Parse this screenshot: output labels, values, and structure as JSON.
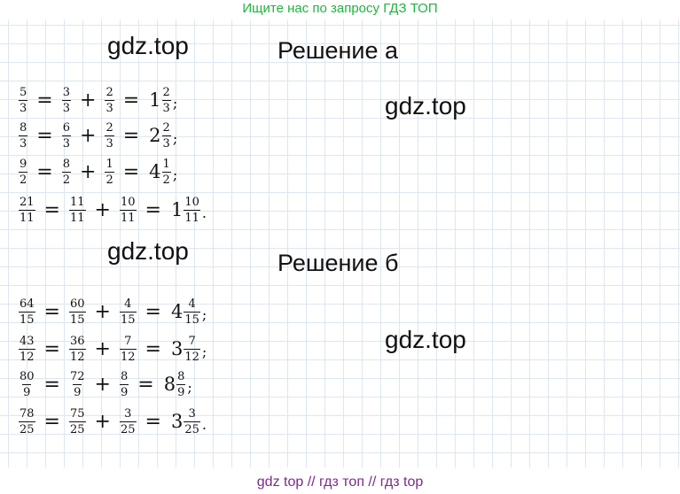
{
  "banner": "Ищите нас по запросу ГДЗ ТОП",
  "watermark": "gdz.top",
  "section_a": {
    "title": "Решение а",
    "equations": [
      {
        "lhs": [
          "5",
          "3"
        ],
        "t1": [
          "3",
          "3"
        ],
        "t2": [
          "2",
          "3"
        ],
        "whole": "1",
        "rf": [
          "2",
          "3"
        ],
        "end": ";"
      },
      {
        "lhs": [
          "8",
          "3"
        ],
        "t1": [
          "6",
          "3"
        ],
        "t2": [
          "2",
          "3"
        ],
        "whole": "2",
        "rf": [
          "2",
          "3"
        ],
        "end": ";"
      },
      {
        "lhs": [
          "9",
          "2"
        ],
        "t1": [
          "8",
          "2"
        ],
        "t2": [
          "1",
          "2"
        ],
        "whole": "4",
        "rf": [
          "1",
          "2"
        ],
        "end": ";"
      },
      {
        "lhs": [
          "21",
          "11"
        ],
        "t1": [
          "11",
          "11"
        ],
        "t2": [
          "10",
          "11"
        ],
        "whole": "1",
        "rf": [
          "10",
          "11"
        ],
        "end": "."
      }
    ]
  },
  "section_b": {
    "title": "Решение б",
    "equations": [
      {
        "lhs": [
          "64",
          "15"
        ],
        "t1": [
          "60",
          "15"
        ],
        "t2": [
          "4",
          "15"
        ],
        "whole": "4",
        "rf": [
          "4",
          "15"
        ],
        "end": ";"
      },
      {
        "lhs": [
          "43",
          "12"
        ],
        "t1": [
          "36",
          "12"
        ],
        "t2": [
          "7",
          "12"
        ],
        "whole": "3",
        "rf": [
          "7",
          "12"
        ],
        "end": ";"
      },
      {
        "lhs": [
          "80",
          "9"
        ],
        "t1": [
          "72",
          "9"
        ],
        "t2": [
          "8",
          "9"
        ],
        "whole": "8",
        "rf": [
          "8",
          "9"
        ],
        "end": ";"
      },
      {
        "lhs": [
          "78",
          "25"
        ],
        "t1": [
          "75",
          "25"
        ],
        "t2": [
          "3",
          "25"
        ],
        "whole": "3",
        "rf": [
          "3",
          "25"
        ],
        "end": "."
      }
    ]
  },
  "symbols": {
    "equals": "=",
    "plus": "+"
  },
  "footer": "gdz top  //  гдз топ  //  гдз top"
}
